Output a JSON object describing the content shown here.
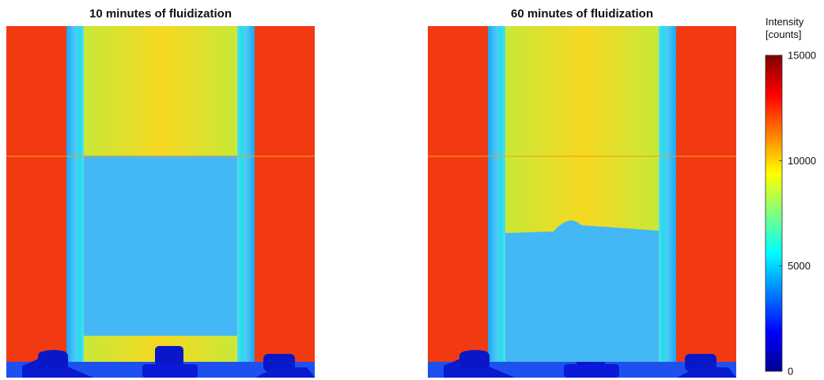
{
  "panels": [
    {
      "title": "10 minutes of fluidization"
    },
    {
      "title": "60 minutes of fluidization"
    }
  ],
  "colorbar": {
    "label": [
      "Intensity",
      "[counts]"
    ],
    "lim": [
      0,
      15000
    ],
    "ticks": [
      0,
      5000,
      10000,
      15000
    ]
  }
}
